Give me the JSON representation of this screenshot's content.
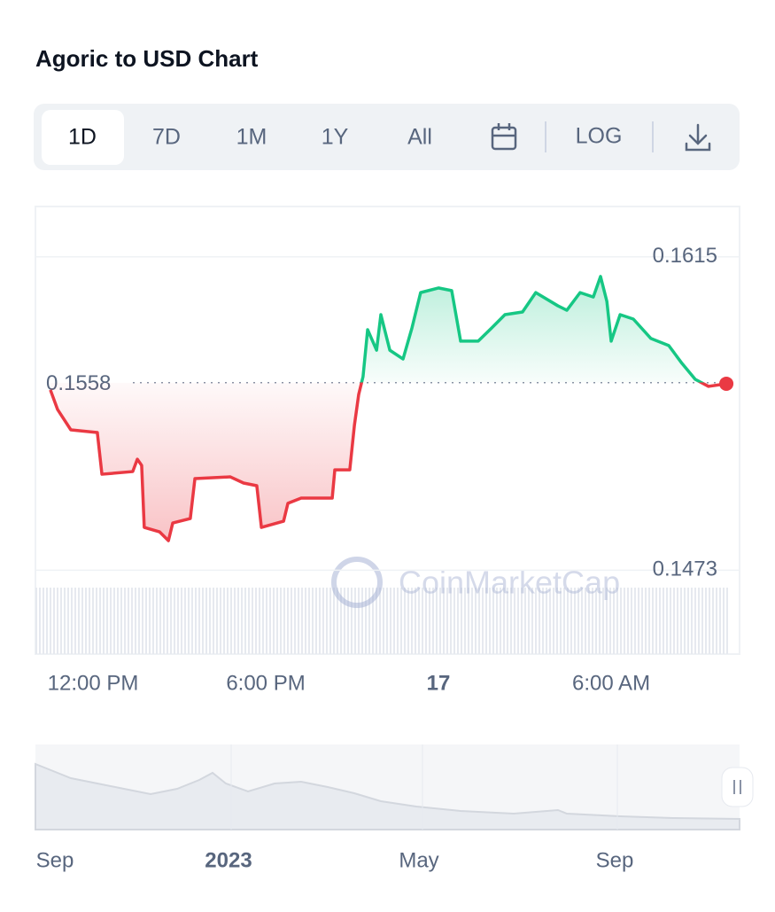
{
  "title": "Agoric to USD Chart",
  "toolbar": {
    "buttons": [
      "1D",
      "7D",
      "1M",
      "1Y",
      "All"
    ],
    "log": "LOG"
  },
  "watermark": "CoinMarketCap",
  "navigator": {
    "labels": [
      "Sep",
      "2023",
      "May",
      "Sep"
    ]
  },
  "chart_data": {
    "type": "line",
    "x": [
      10.52,
      10.77,
      11.23,
      12.15,
      12.31,
      13.38,
      13.54,
      13.69,
      13.78,
      14.31,
      14.62,
      14.77,
      15.38,
      15.54,
      16.77,
      17.23,
      17.69,
      17.85,
      18.62,
      18.77,
      19.23,
      20.31,
      20.4,
      20.92,
      21.08,
      21.23,
      21.38,
      21.54,
      21.85,
      22.0,
      22.31,
      22.77,
      23.08,
      23.38,
      24.0,
      24.46,
      24.77,
      25.38,
      25.85,
      26.31,
      26.92,
      27.38,
      28.15,
      28.46,
      28.92,
      29.38,
      29.63,
      29.85,
      30.0,
      30.31,
      30.77,
      31.38,
      32.0,
      32.46,
      32.92,
      33.38,
      34.0
    ],
    "values": [
      0.15547,
      0.15458,
      0.15366,
      0.15354,
      0.15165,
      0.15177,
      0.15233,
      0.15205,
      0.14924,
      0.14904,
      0.14864,
      0.14944,
      0.14964,
      0.15145,
      0.15153,
      0.15125,
      0.15113,
      0.14924,
      0.14952,
      0.15033,
      0.15057,
      0.15057,
      0.15185,
      0.15185,
      0.15386,
      0.15527,
      0.15607,
      0.1582,
      0.15727,
      0.15888,
      0.15727,
      0.15687,
      0.15828,
      0.15988,
      0.16009,
      0.15997,
      0.15768,
      0.15768,
      0.15828,
      0.15888,
      0.159,
      0.15988,
      0.15928,
      0.15908,
      0.15988,
      0.15968,
      0.16061,
      0.15948,
      0.15768,
      0.15888,
      0.15868,
      0.1578,
      0.15748,
      0.15667,
      0.15595,
      0.15563,
      0.15575
    ],
    "reference": 0.1558,
    "color_up": "#16c784",
    "color_down": "#ea3943",
    "xlim": [
      10,
      34.46
    ],
    "xticks": [
      {
        "value": 12,
        "label": "12:00 PM"
      },
      {
        "value": 18,
        "label": "6:00 PM"
      },
      {
        "value": 24,
        "label": "17"
      },
      {
        "value": 30,
        "label": "6:00 AM"
      }
    ],
    "ylim": [
      0.1435,
      0.1637
    ],
    "yticks": [
      0.1473,
      0.1615
    ]
  }
}
